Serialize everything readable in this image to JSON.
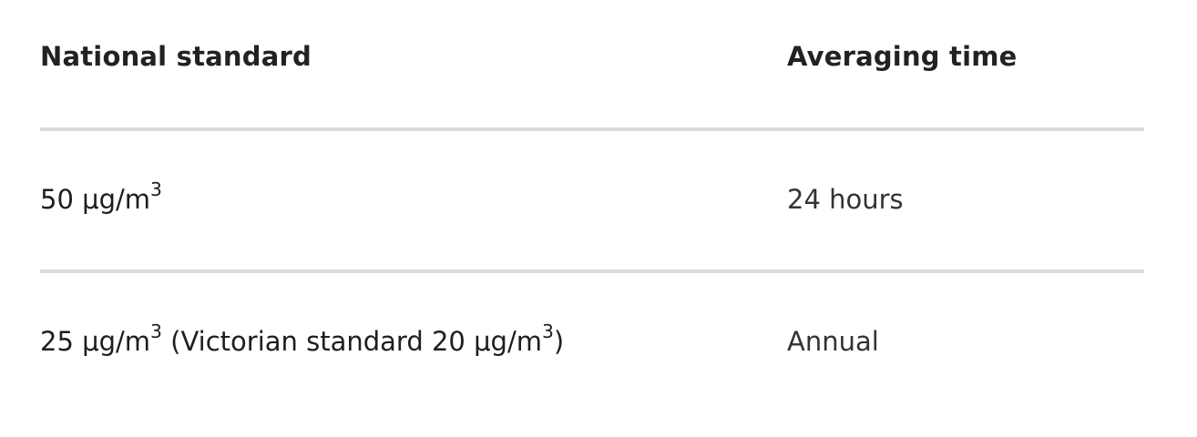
{
  "table": {
    "headers": {
      "standard": "National standard",
      "averaging_time": "Averaging time"
    },
    "rows": [
      {
        "value": "50",
        "unit": "μg/m",
        "unit_exponent": "3",
        "note_prefix": "",
        "note_value": "",
        "note_unit": "",
        "note_exponent": "",
        "note_suffix": "",
        "averaging_time": "24 hours"
      },
      {
        "value": "25",
        "unit": "μg/m",
        "unit_exponent": "3",
        "note_prefix": "(Victorian standard",
        "note_value": "20",
        "note_unit": "μg/m",
        "note_exponent": "3",
        "note_suffix": ")",
        "averaging_time": "Annual"
      }
    ]
  }
}
